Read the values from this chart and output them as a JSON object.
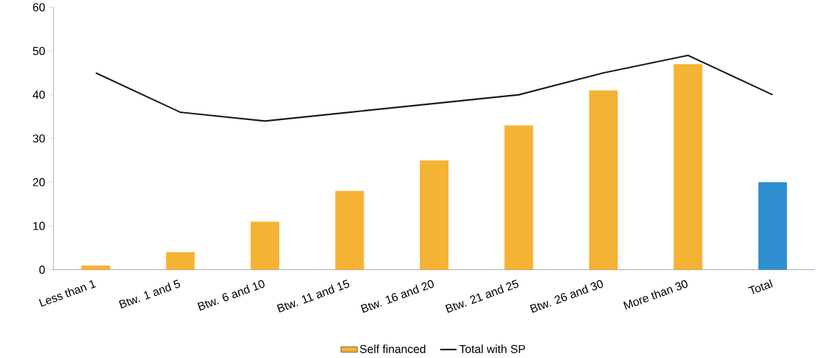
{
  "chart_data": {
    "type": "bar",
    "categories": [
      "Less than 1",
      "Btw. 1 and 5",
      "Btw. 6 and 10",
      "Btw. 11 and 15",
      "Btw. 16 and 20",
      "Btw. 21 and 25",
      "Btw. 26 and 30",
      "More than 30",
      "Total"
    ],
    "series": [
      {
        "name": "Self financed",
        "color": "#f5b335",
        "colors": [
          "#f5b335",
          "#f5b335",
          "#f5b335",
          "#f5b335",
          "#f5b335",
          "#f5b335",
          "#f5b335",
          "#f5b335",
          "#2f8fd0"
        ],
        "values": [
          1,
          4,
          11,
          18,
          25,
          33,
          41,
          47,
          20
        ]
      },
      {
        "name": "Total with SP",
        "type": "line",
        "color": "#1a1a1a",
        "values": [
          45,
          36,
          34,
          36,
          38,
          40,
          45,
          49,
          40
        ]
      }
    ],
    "ylim": [
      0,
      60
    ],
    "yticks": [
      0,
      10,
      20,
      30,
      40,
      50,
      60
    ],
    "legend": "bottom",
    "marker": "none",
    "line_style": "solid"
  }
}
